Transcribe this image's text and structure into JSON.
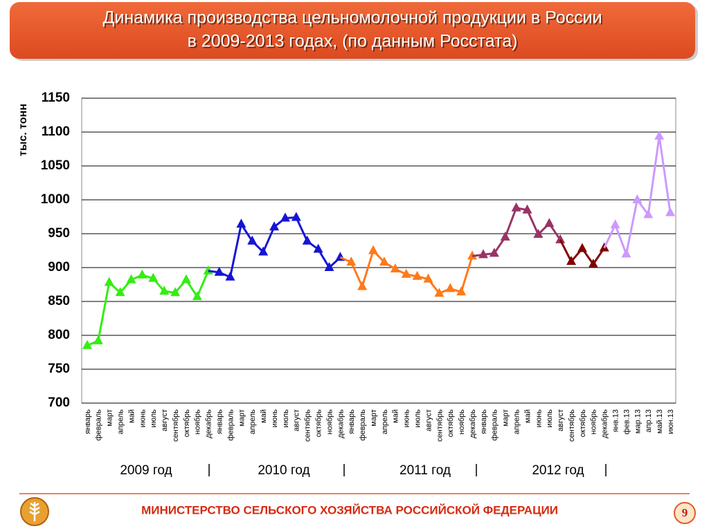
{
  "chart_data": {
    "type": "line",
    "title_lines": [
      "Динамика производства цельномолочной продукции в России",
      "в 2009-2013 годах, (по данным Росстата)"
    ],
    "y_label": "тыс. тонн",
    "categories": [
      "январь",
      "февраль",
      "март",
      "апрель",
      "май",
      "июнь",
      "июль",
      "август",
      "сентябрь",
      "октябрь",
      "ноябрь",
      "декабрь",
      "январь",
      "февраль",
      "март",
      "апрель",
      "май",
      "июнь",
      "июль",
      "август",
      "сентябрь",
      "октябрь",
      "ноябрь",
      "декабрь",
      "январь",
      "февраль",
      "март",
      "апрель",
      "май",
      "июнь",
      "июль",
      "август",
      "сентябрь",
      "октябрь",
      "ноябрь",
      "декабрь",
      "январь",
      "февраль",
      "март",
      "апрель",
      "май",
      "июнь",
      "июль",
      "август",
      "сентябрь",
      "октябрь",
      "ноябрь",
      "декабрь",
      "янв.13",
      "фев.13",
      "мар.13",
      "апр.13",
      "май.13",
      "июн.13"
    ],
    "series": [
      {
        "color": "#33ee11",
        "values": [
          785,
          792,
          878,
          863,
          882,
          889,
          884,
          865,
          863,
          882,
          857,
          895,
          null,
          null,
          null,
          null,
          null,
          null,
          null,
          null,
          null,
          null,
          null,
          null,
          null,
          null,
          null,
          null,
          null,
          null,
          null,
          null,
          null,
          null,
          null,
          null,
          null,
          null,
          null,
          null,
          null,
          null,
          null,
          null,
          null,
          null,
          null,
          null,
          null,
          null,
          null,
          null,
          null,
          null
        ]
      },
      {
        "color": "#1515d5",
        "values": [
          null,
          null,
          null,
          null,
          null,
          null,
          null,
          null,
          null,
          null,
          null,
          null,
          893,
          886,
          964,
          939,
          923,
          960,
          973,
          974,
          939,
          927,
          900,
          915,
          null,
          null,
          null,
          null,
          null,
          null,
          null,
          null,
          null,
          null,
          null,
          null,
          null,
          null,
          null,
          null,
          null,
          null,
          null,
          null,
          null,
          null,
          null,
          null,
          null,
          null,
          null,
          null,
          null,
          null
        ]
      },
      {
        "color": "#ff7a1a",
        "values": [
          null,
          null,
          null,
          null,
          null,
          null,
          null,
          null,
          null,
          null,
          null,
          null,
          null,
          null,
          null,
          null,
          null,
          null,
          null,
          null,
          null,
          null,
          null,
          null,
          908,
          872,
          925,
          908,
          898,
          890,
          887,
          883,
          862,
          869,
          864,
          917,
          null,
          null,
          null,
          null,
          null,
          null,
          null,
          null,
          null,
          null,
          null,
          null,
          null,
          null,
          null,
          null,
          null,
          null
        ]
      },
      {
        "color": "#993366",
        "values": [
          null,
          null,
          null,
          null,
          null,
          null,
          null,
          null,
          null,
          null,
          null,
          null,
          null,
          null,
          null,
          null,
          null,
          null,
          null,
          null,
          null,
          null,
          null,
          null,
          null,
          null,
          null,
          null,
          null,
          null,
          null,
          null,
          null,
          null,
          null,
          null,
          919,
          921,
          945,
          988,
          985,
          949,
          965,
          941,
          null,
          null,
          null,
          null,
          null,
          null,
          null,
          null,
          null,
          null
        ]
      },
      {
        "color": "#800000",
        "values": [
          null,
          null,
          null,
          null,
          null,
          null,
          null,
          null,
          null,
          null,
          null,
          null,
          null,
          null,
          null,
          null,
          null,
          null,
          null,
          null,
          null,
          null,
          null,
          null,
          null,
          null,
          null,
          null,
          null,
          null,
          null,
          null,
          null,
          null,
          null,
          null,
          null,
          null,
          null,
          null,
          null,
          null,
          null,
          null,
          909,
          928,
          905,
          929,
          null,
          null,
          null,
          null,
          null,
          null
        ]
      },
      {
        "color": "#cc99ff",
        "values": [
          null,
          null,
          null,
          null,
          null,
          null,
          null,
          null,
          null,
          null,
          null,
          null,
          null,
          null,
          null,
          null,
          null,
          null,
          null,
          null,
          null,
          null,
          null,
          null,
          null,
          null,
          null,
          null,
          null,
          null,
          null,
          null,
          null,
          null,
          null,
          null,
          null,
          null,
          null,
          null,
          null,
          null,
          null,
          null,
          null,
          null,
          null,
          null,
          963,
          920,
          1000,
          978,
          1094,
          981
        ]
      }
    ],
    "ylim": [
      700,
      1150
    ],
    "yticks": [
      700,
      750,
      800,
      850,
      900,
      950,
      1000,
      1050,
      1100,
      1150
    ],
    "grid": true,
    "year_labels": [
      "2009 год",
      "2010 год",
      "2011 год",
      "2012 год"
    ]
  },
  "footer": {
    "ministry": "МИНИСТЕРСТВО СЕЛЬСКОГО ХОЗЯЙСТВА РОССИЙСКОЙ ФЕДЕРАЦИИ",
    "page": "9"
  }
}
